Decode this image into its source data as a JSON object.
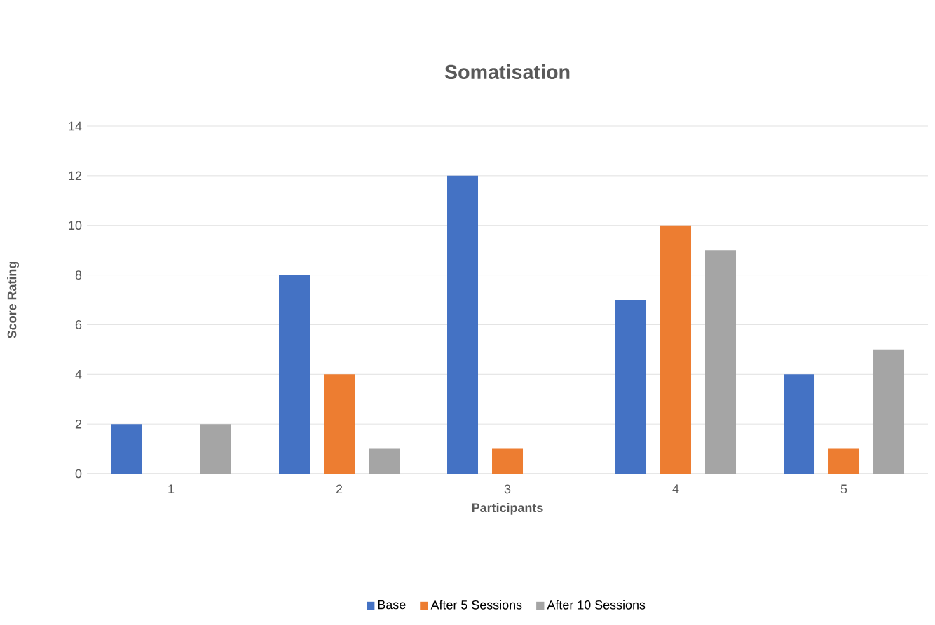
{
  "chart_data": {
    "type": "bar",
    "title": "Somatisation",
    "xlabel": "Participants",
    "ylabel": "Score Rating",
    "categories": [
      "1",
      "2",
      "3",
      "4",
      "5"
    ],
    "series": [
      {
        "name": "Base",
        "color": "#4472c4",
        "values": [
          2,
          8,
          12,
          7,
          4
        ]
      },
      {
        "name": "After 5 Sessions",
        "color": "#ed7d31",
        "values": [
          0,
          4,
          1,
          10,
          1
        ]
      },
      {
        "name": "After 10 Sessions",
        "color": "#a5a5a5",
        "values": [
          2,
          1,
          0,
          9,
          5
        ]
      }
    ],
    "ylim": [
      0,
      14
    ],
    "yticks": [
      0,
      2,
      4,
      6,
      8,
      10,
      12,
      14
    ],
    "grid": true,
    "legend": "bottom"
  }
}
